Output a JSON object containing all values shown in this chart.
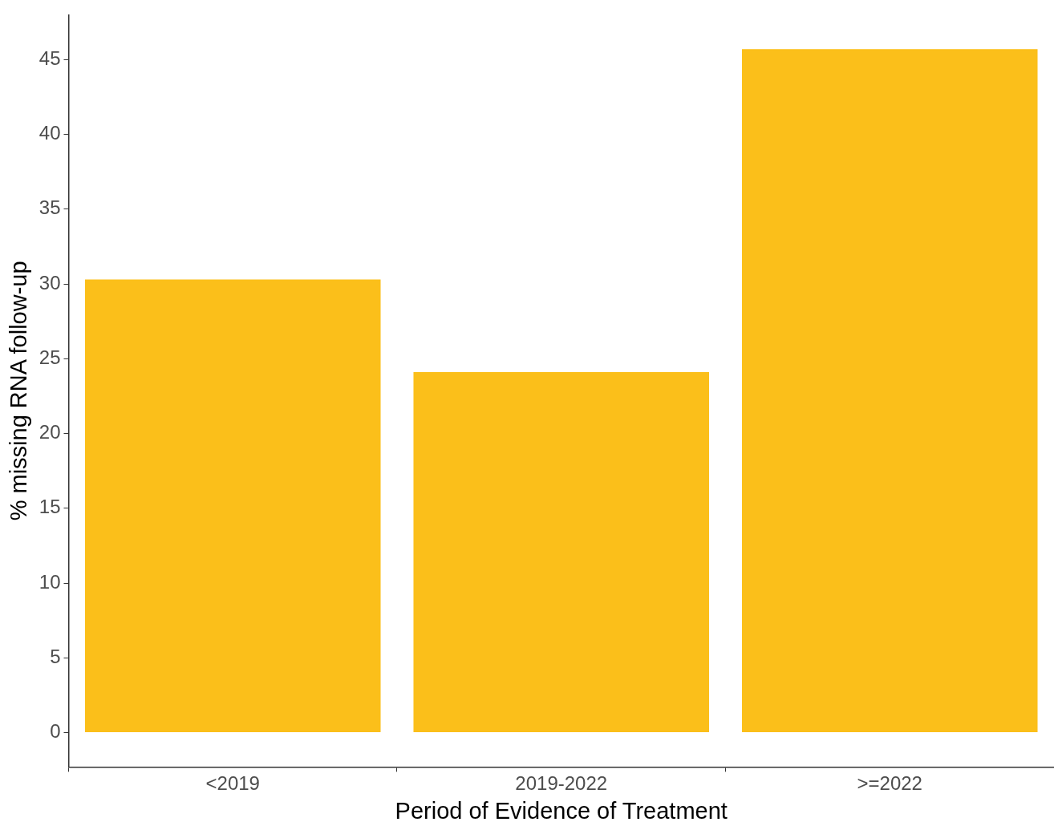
{
  "chart_data": {
    "type": "bar",
    "xlabel": "Period of Evidence of Treatment",
    "ylabel": "% missing RNA follow-up",
    "categories": [
      "<2019",
      "2019-2022",
      ">=2022"
    ],
    "values": [
      30.3,
      24.1,
      45.7
    ],
    "color": "#fbbf1a",
    "ylim": [
      -2.3,
      48
    ],
    "yticks": [
      0,
      5,
      10,
      15,
      20,
      25,
      30,
      35,
      40,
      45
    ],
    "grid": false,
    "legend": false
  }
}
